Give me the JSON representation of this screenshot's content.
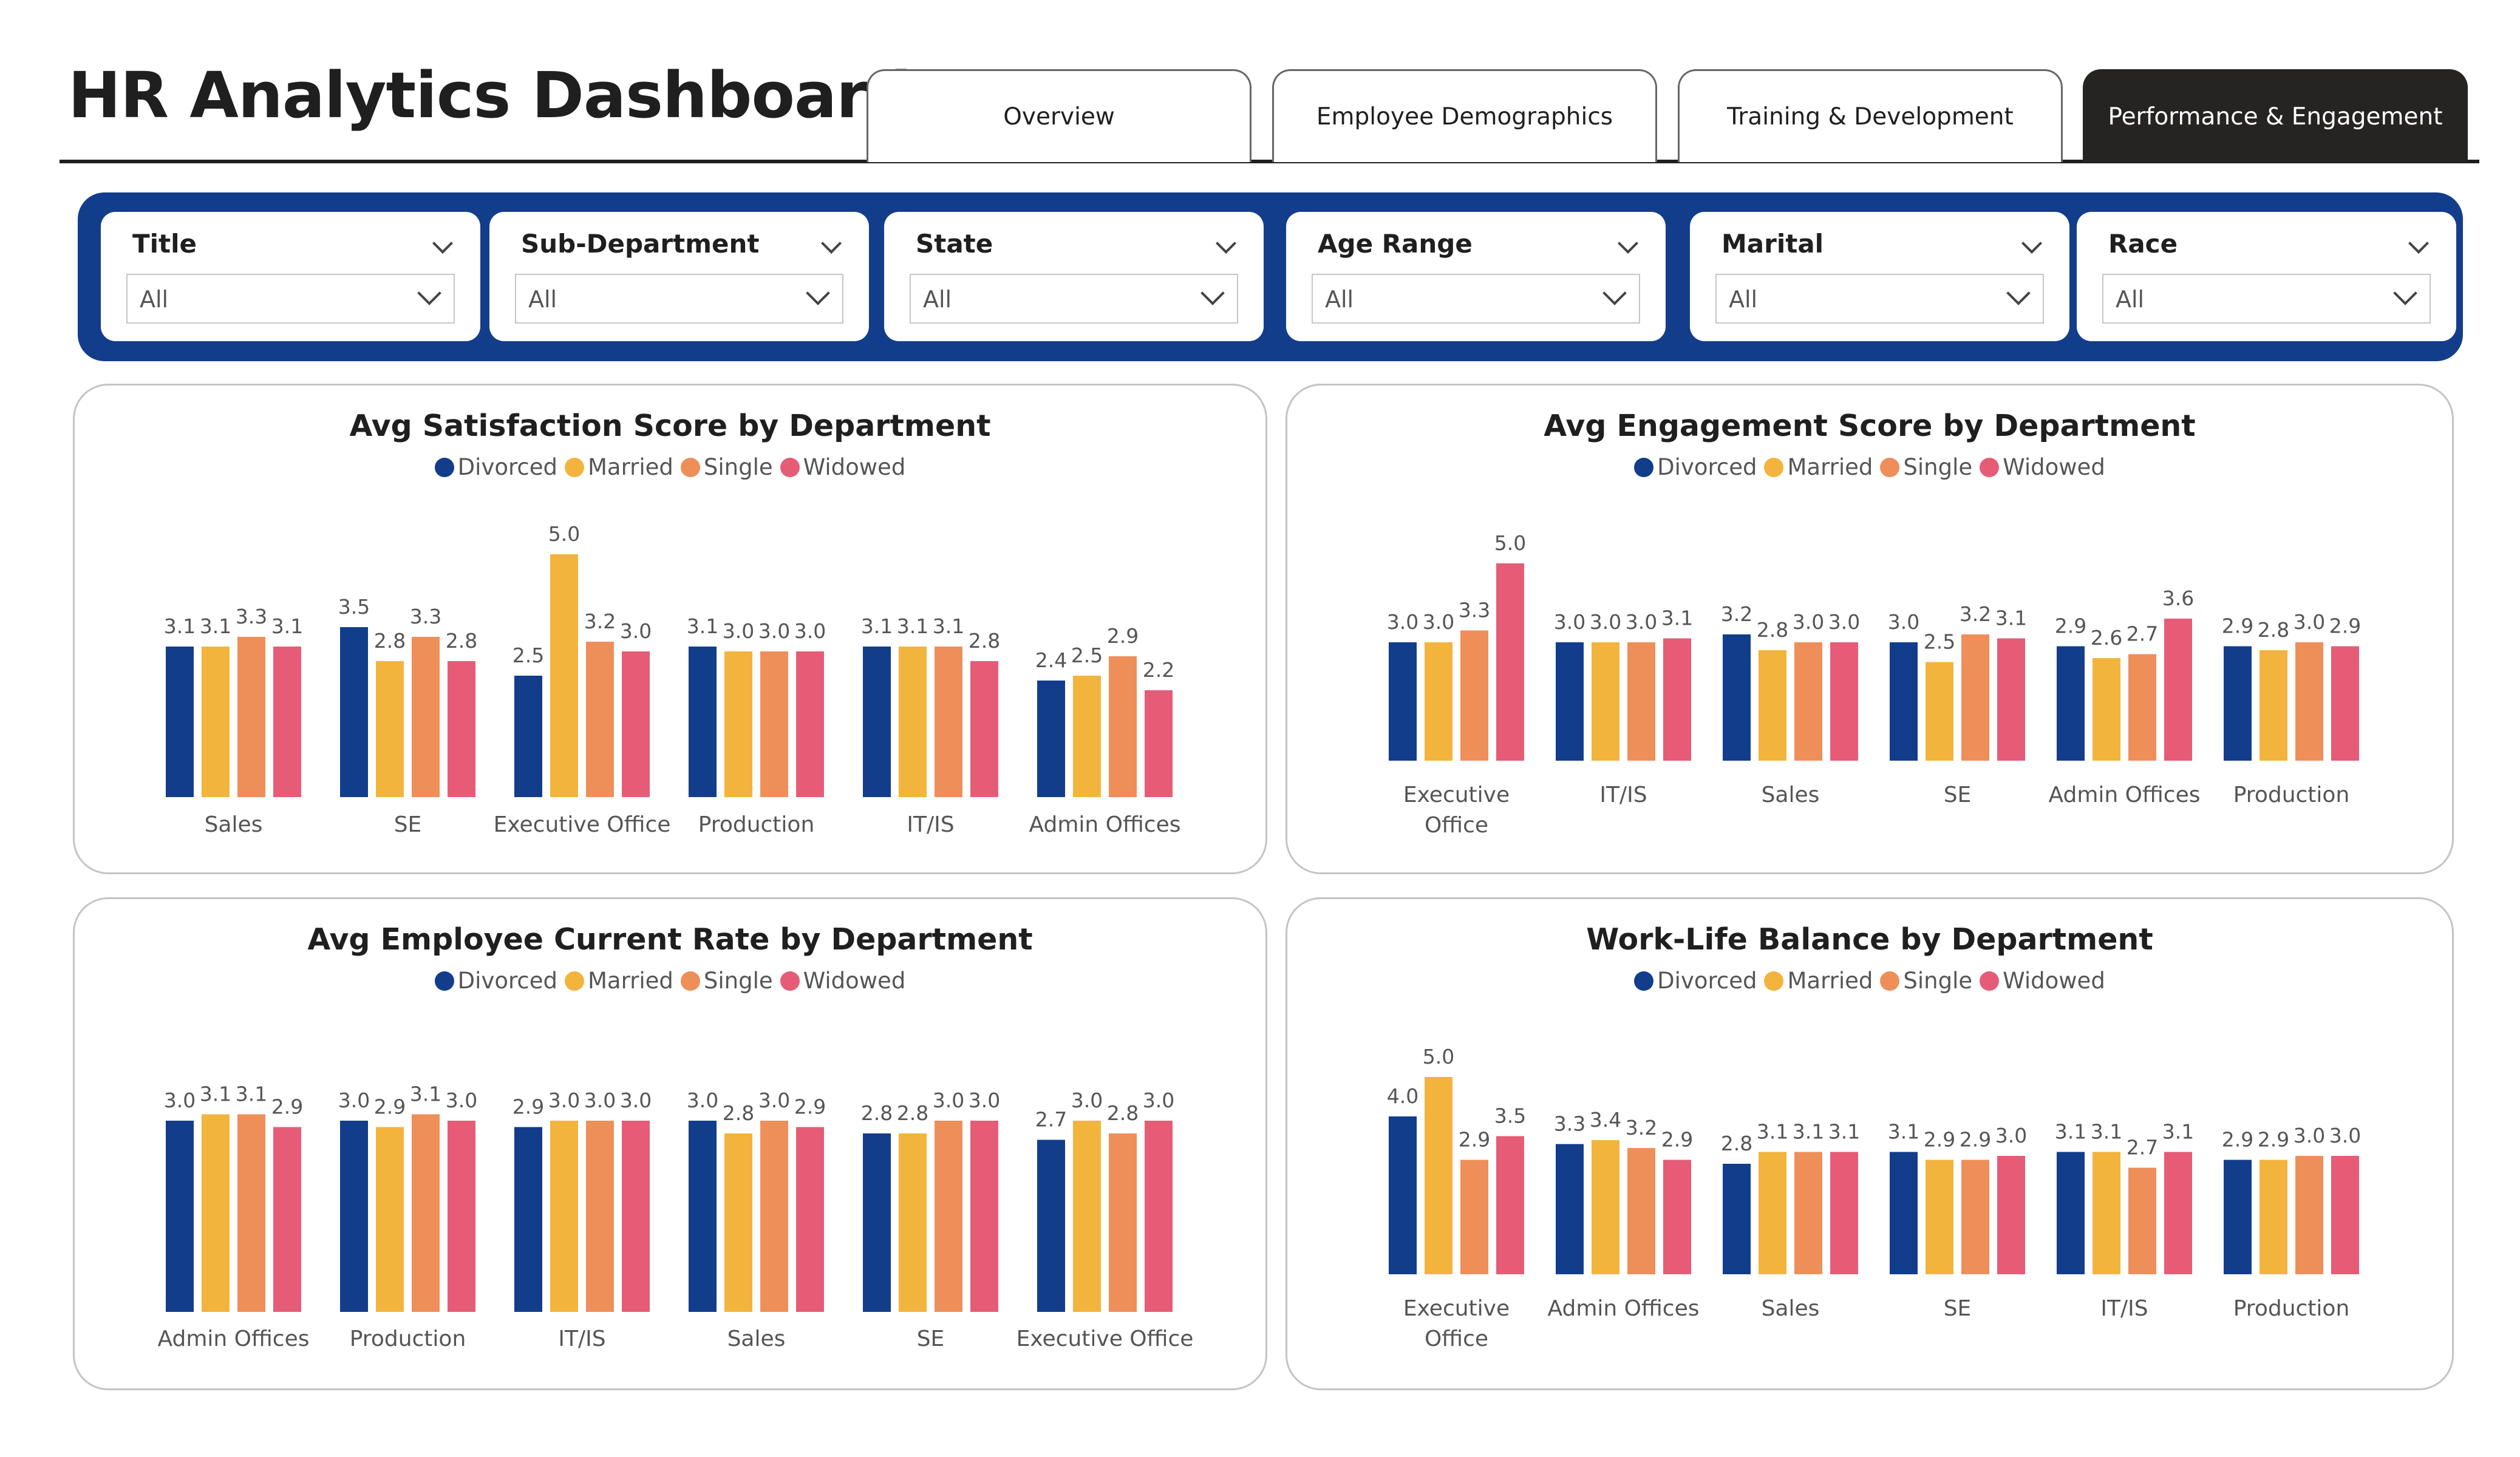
{
  "header": {
    "title": "HR Analytics Dashboard"
  },
  "tabs": [
    {
      "label": "Overview",
      "active": false
    },
    {
      "label": "Employee Demographics",
      "active": false
    },
    {
      "label": "Training & Development",
      "active": false
    },
    {
      "label": "Performance & Engagement",
      "active": true
    }
  ],
  "filters": [
    {
      "label": "Title",
      "value": "All"
    },
    {
      "label": "Sub-Department",
      "value": "All"
    },
    {
      "label": "State",
      "value": "All"
    },
    {
      "label": "Age Range",
      "value": "All"
    },
    {
      "label": "Marital",
      "value": "All"
    },
    {
      "label": "Race",
      "value": "All"
    }
  ],
  "colors": {
    "accent": "#123d8b",
    "tab_active": "#252423",
    "Divorced": "#123d8b",
    "Married": "#f2b43c",
    "Single": "#ee8f5a",
    "Widowed": "#e65c77"
  },
  "chart_data": [
    {
      "type": "bar",
      "title": "Avg Satisfaction Score by Department",
      "categories": [
        "Sales",
        "SE",
        "Executive Office",
        "Production",
        "IT/IS",
        "Admin Offices"
      ],
      "series": [
        {
          "name": "Divorced",
          "values": [
            3.1,
            3.5,
            2.5,
            3.1,
            3.1,
            2.4
          ]
        },
        {
          "name": "Married",
          "values": [
            3.1,
            2.8,
            5.0,
            3.0,
            3.1,
            2.5
          ]
        },
        {
          "name": "Single",
          "values": [
            3.3,
            3.3,
            3.2,
            3.0,
            3.1,
            2.9
          ]
        },
        {
          "name": "Widowed",
          "values": [
            3.1,
            2.8,
            3.0,
            3.0,
            2.8,
            2.2
          ]
        }
      ],
      "legend": "top-center",
      "grid": false,
      "data_labels": true
    },
    {
      "type": "bar",
      "title": "Avg Engagement Score by Department",
      "categories": [
        "Executive Office",
        "IT/IS",
        "Sales",
        "SE",
        "Admin Offices",
        "Production"
      ],
      "series": [
        {
          "name": "Divorced",
          "values": [
            3.0,
            3.0,
            3.2,
            3.0,
            2.9,
            2.9
          ]
        },
        {
          "name": "Married",
          "values": [
            3.0,
            3.0,
            2.8,
            2.5,
            2.6,
            2.8
          ]
        },
        {
          "name": "Single",
          "values": [
            3.3,
            3.0,
            3.0,
            3.2,
            2.7,
            3.0
          ]
        },
        {
          "name": "Widowed",
          "values": [
            5.0,
            3.1,
            3.0,
            3.1,
            3.6,
            2.9
          ]
        }
      ],
      "legend": "top-center",
      "grid": false,
      "data_labels": true
    },
    {
      "type": "bar",
      "title": "Avg Employee Current Rate by Department",
      "categories": [
        "Admin Offices",
        "Production",
        "IT/IS",
        "Sales",
        "SE",
        "Executive Office"
      ],
      "series": [
        {
          "name": "Divorced",
          "values": [
            3.0,
            3.0,
            2.9,
            3.0,
            2.8,
            2.7
          ]
        },
        {
          "name": "Married",
          "values": [
            3.1,
            2.9,
            3.0,
            2.8,
            2.8,
            3.0
          ]
        },
        {
          "name": "Single",
          "values": [
            3.1,
            3.1,
            3.0,
            3.0,
            3.0,
            2.8
          ]
        },
        {
          "name": "Widowed",
          "values": [
            2.9,
            3.0,
            3.0,
            2.9,
            3.0,
            3.0
          ]
        }
      ],
      "legend": "top-center",
      "grid": false,
      "data_labels": true
    },
    {
      "type": "bar",
      "title": "Work-Life Balance by Department",
      "categories": [
        "Executive Office",
        "Admin Offices",
        "Sales",
        "SE",
        "IT/IS",
        "Production"
      ],
      "series": [
        {
          "name": "Divorced",
          "values": [
            4.0,
            3.3,
            2.8,
            3.1,
            3.1,
            2.9
          ]
        },
        {
          "name": "Married",
          "values": [
            5.0,
            3.4,
            3.1,
            2.9,
            3.1,
            2.9
          ]
        },
        {
          "name": "Single",
          "values": [
            2.9,
            3.2,
            3.1,
            2.9,
            2.7,
            3.0
          ]
        },
        {
          "name": "Widowed",
          "values": [
            3.5,
            2.9,
            3.1,
            3.0,
            3.1,
            3.0
          ]
        }
      ],
      "legend": "top-center",
      "grid": false,
      "data_labels": true
    }
  ]
}
